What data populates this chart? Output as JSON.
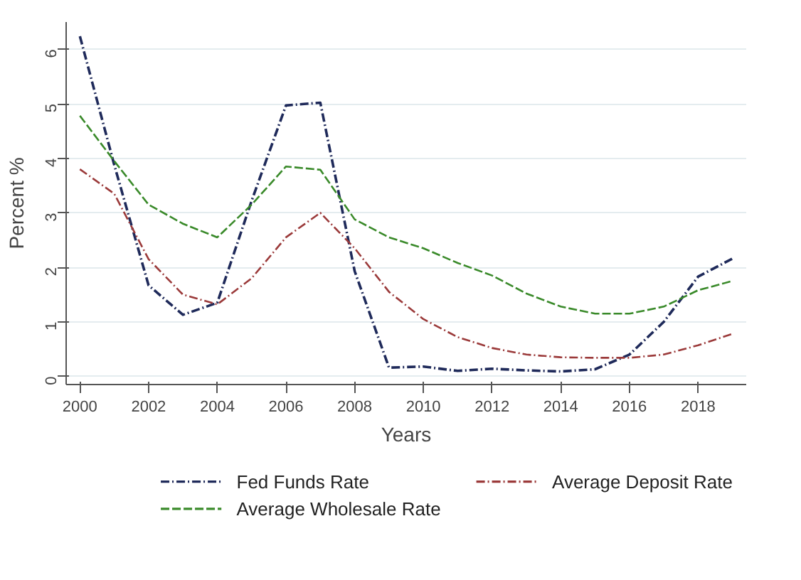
{
  "chart_data": {
    "type": "line",
    "xlabel": "Years",
    "ylabel": "Percent %",
    "x": [
      2000,
      2001,
      2002,
      2003,
      2004,
      2005,
      2006,
      2007,
      2008,
      2009,
      2010,
      2011,
      2012,
      2013,
      2014,
      2015,
      2016,
      2017,
      2018,
      2019
    ],
    "series": [
      {
        "name": "Fed Funds Rate",
        "color": "#1f2a5a",
        "line_style": "dashdot",
        "values": [
          6.24,
          3.88,
          1.67,
          1.13,
          1.35,
          3.22,
          4.97,
          5.02,
          1.93,
          0.16,
          0.18,
          0.1,
          0.14,
          0.11,
          0.09,
          0.13,
          0.4,
          1.0,
          1.83,
          2.16
        ]
      },
      {
        "name": "Average Wholesale Rate",
        "color": "#3a8a2a",
        "line_style": "dashed",
        "values": [
          4.78,
          3.95,
          3.15,
          2.8,
          2.55,
          3.15,
          3.85,
          3.79,
          2.88,
          2.55,
          2.35,
          2.08,
          1.85,
          1.52,
          1.28,
          1.15,
          1.15,
          1.28,
          1.58,
          1.75
        ]
      },
      {
        "name": "Average Deposit Rate",
        "color": "#9b3a3a",
        "line_style": "dashdot",
        "values": [
          3.8,
          3.35,
          2.15,
          1.5,
          1.32,
          1.8,
          2.55,
          3.0,
          2.35,
          1.55,
          1.05,
          0.72,
          0.52,
          0.4,
          0.35,
          0.34,
          0.34,
          0.4,
          0.57,
          0.78
        ]
      }
    ],
    "xlim": [
      1999.6,
      2019.4
    ],
    "ylim": [
      -0.15,
      6.5
    ],
    "xticks": [
      2000,
      2002,
      2004,
      2006,
      2008,
      2010,
      2012,
      2014,
      2016,
      2018
    ],
    "yticks": [
      0,
      1,
      2,
      3,
      4,
      5,
      6
    ],
    "grid": "y",
    "legend": "bottom",
    "marker": "none"
  }
}
